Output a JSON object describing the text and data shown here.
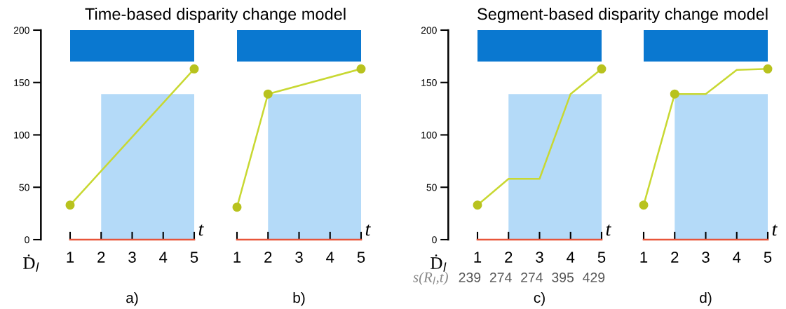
{
  "chart_data": [
    {
      "type": "line",
      "title": "Time-based disparity change model",
      "xlabel": "t",
      "ylabel": "Ḋ$_{l}$",
      "xlim": [
        1,
        5
      ],
      "ylim": [
        0,
        200
      ],
      "xticks": [
        1,
        2,
        3,
        4,
        5
      ],
      "yticks": [
        0,
        50,
        100,
        150,
        200
      ],
      "annotations": [
        "a)"
      ],
      "bands": [
        {
          "axis": "y",
          "from": 170,
          "to": 200,
          "color": "#0a78d0"
        }
      ],
      "series": [
        {
          "type": "area",
          "color": "#b4daf8",
          "x": [
            2,
            5
          ],
          "values": [
            139,
            139
          ]
        },
        {
          "color": "#e8553a",
          "x": [
            1,
            5
          ],
          "values": [
            0,
            0
          ],
          "marker": "none"
        },
        {
          "color": "#c8d832",
          "x": [
            1,
            5
          ],
          "values": [
            33,
            163
          ],
          "marker": "none"
        },
        {
          "type": "scatter",
          "color": "#b8c21e",
          "x": [
            1,
            5
          ],
          "values": [
            33,
            163
          ],
          "marker": "circle"
        }
      ]
    },
    {
      "type": "line",
      "xlabel": "t",
      "xlim": [
        1,
        5
      ],
      "ylim": [
        0,
        200
      ],
      "xticks": [
        1,
        2,
        3,
        4,
        5
      ],
      "tick_labels": "x",
      "annotations": [
        "b)"
      ],
      "bands": [
        {
          "axis": "y",
          "from": 170,
          "to": 200,
          "color": "#0a78d0"
        }
      ],
      "series": [
        {
          "type": "area",
          "color": "#b4daf8",
          "x": [
            2,
            5
          ],
          "values": [
            139,
            139
          ]
        },
        {
          "color": "#e8553a",
          "x": [
            1,
            5
          ],
          "values": [
            0,
            0
          ],
          "marker": "none"
        },
        {
          "color": "#c8d832",
          "x": [
            1,
            2,
            5
          ],
          "values": [
            31,
            139,
            163
          ],
          "marker": "none"
        },
        {
          "type": "scatter",
          "color": "#b8c21e",
          "x": [
            1,
            2,
            5
          ],
          "values": [
            31,
            139,
            163
          ],
          "marker": "circle"
        }
      ]
    },
    {
      "type": "line",
      "title": "Segment-based disparity change model",
      "xlabel": "t",
      "ylabel": "Ḋ$_{l}$",
      "xlim": [
        1,
        5
      ],
      "ylim": [
        0,
        200
      ],
      "xticks": [
        1,
        2,
        3,
        4,
        5
      ],
      "yticks": [
        0,
        50,
        100,
        150,
        200
      ],
      "annotations": [
        "c)",
        "s(R$_{l}$,t)",
        "239",
        "274",
        "274",
        "395",
        "429"
      ],
      "bands": [
        {
          "axis": "y",
          "from": 170,
          "to": 200,
          "color": "#0a78d0"
        }
      ],
      "series": [
        {
          "type": "area",
          "color": "#b4daf8",
          "x": [
            2,
            5
          ],
          "values": [
            139,
            139
          ]
        },
        {
          "color": "#e8553a",
          "x": [
            1,
            5
          ],
          "values": [
            0,
            0
          ],
          "marker": "none"
        },
        {
          "color": "#c8d832",
          "x": [
            1,
            2,
            3,
            4,
            5
          ],
          "values": [
            33,
            58,
            58,
            139,
            163
          ],
          "marker": "none"
        },
        {
          "type": "scatter",
          "color": "#b8c21e",
          "x": [
            1,
            5
          ],
          "values": [
            33,
            163
          ],
          "marker": "circle"
        }
      ]
    },
    {
      "type": "line",
      "xlabel": "t",
      "xlim": [
        1,
        5
      ],
      "ylim": [
        0,
        200
      ],
      "xticks": [
        1,
        2,
        3,
        4,
        5
      ],
      "tick_labels": "x",
      "annotations": [
        "d)"
      ],
      "bands": [
        {
          "axis": "y",
          "from": 170,
          "to": 200,
          "color": "#0a78d0"
        }
      ],
      "series": [
        {
          "type": "area",
          "color": "#b4daf8",
          "x": [
            2,
            5
          ],
          "values": [
            139,
            139
          ]
        },
        {
          "color": "#e8553a",
          "x": [
            1,
            5
          ],
          "values": [
            0,
            0
          ],
          "marker": "none"
        },
        {
          "color": "#c8d832",
          "x": [
            1,
            2,
            3,
            4,
            5
          ],
          "values": [
            33,
            139,
            139,
            162,
            163
          ],
          "marker": "none"
        },
        {
          "type": "scatter",
          "color": "#b8c21e",
          "x": [
            1,
            2,
            5
          ],
          "values": [
            33,
            139,
            163
          ],
          "marker": "circle"
        }
      ]
    }
  ]
}
